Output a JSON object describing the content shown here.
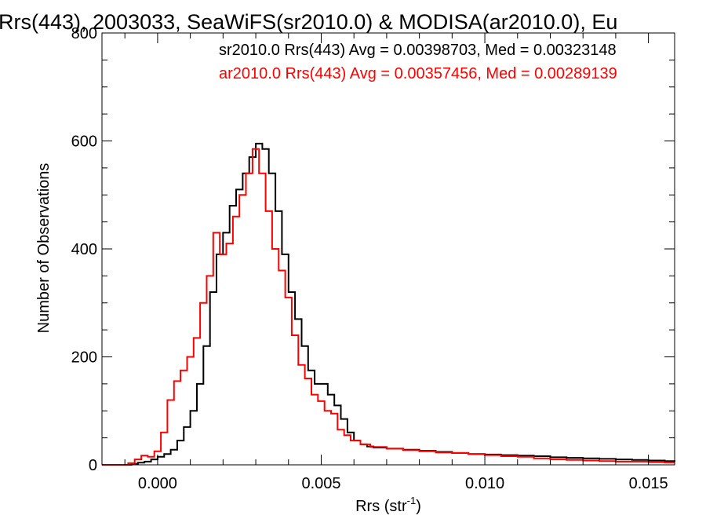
{
  "chart_data": {
    "type": "histogram",
    "title": "Rrs(443), 2003033, SeaWiFS(sr2010.0) & MODISA(ar2010.0), Eu",
    "xlabel": "Rrs (str",
    "xlabel_sup": "-1",
    "xlabel_suffix": ")",
    "ylabel": "Number of Observations",
    "xlim": [
      -0.0017,
      0.0158
    ],
    "ylim": [
      0,
      800
    ],
    "xticks": [
      0.0,
      0.005,
      0.01,
      0.015
    ],
    "xtick_labels": [
      "0.000",
      "0.005",
      "0.010",
      "0.015"
    ],
    "yticks": [
      0,
      200,
      400,
      600,
      800
    ],
    "ytick_labels": [
      "0",
      "200",
      "400",
      "600",
      "800"
    ],
    "grid": false,
    "legend_position": "top-right",
    "series": [
      {
        "legend": "sr2010.0 Rrs(443) Avg = 0.00398703, Med = 0.00323148",
        "color": "#000000",
        "points": [
          [
            -0.0017,
            0
          ],
          [
            -0.001,
            0
          ],
          [
            -0.0008,
            2
          ],
          [
            -0.0006,
            4
          ],
          [
            -0.0004,
            6
          ],
          [
            -0.0002,
            10
          ],
          [
            0.0,
            15
          ],
          [
            0.0002,
            20
          ],
          [
            0.0004,
            28
          ],
          [
            0.0006,
            45
          ],
          [
            0.0008,
            70
          ],
          [
            0.001,
            100
          ],
          [
            0.0012,
            150
          ],
          [
            0.0014,
            220
          ],
          [
            0.0016,
            320
          ],
          [
            0.0018,
            390
          ],
          [
            0.002,
            430
          ],
          [
            0.0022,
            480
          ],
          [
            0.0024,
            510
          ],
          [
            0.0026,
            540
          ],
          [
            0.0028,
            570
          ],
          [
            0.003,
            595
          ],
          [
            0.0032,
            585
          ],
          [
            0.0034,
            540
          ],
          [
            0.0036,
            470
          ],
          [
            0.0038,
            390
          ],
          [
            0.004,
            320
          ],
          [
            0.0042,
            270
          ],
          [
            0.0044,
            220
          ],
          [
            0.0046,
            175
          ],
          [
            0.0048,
            150
          ],
          [
            0.005,
            150
          ],
          [
            0.0052,
            130
          ],
          [
            0.0054,
            110
          ],
          [
            0.0056,
            85
          ],
          [
            0.0058,
            60
          ],
          [
            0.006,
            45
          ],
          [
            0.0062,
            38
          ],
          [
            0.0064,
            34
          ],
          [
            0.0066,
            32
          ],
          [
            0.007,
            30
          ],
          [
            0.0075,
            28
          ],
          [
            0.008,
            26
          ],
          [
            0.0085,
            24
          ],
          [
            0.009,
            22
          ],
          [
            0.0095,
            20
          ],
          [
            0.01,
            19
          ],
          [
            0.0105,
            18
          ],
          [
            0.011,
            17
          ],
          [
            0.0115,
            16
          ],
          [
            0.012,
            14
          ],
          [
            0.0125,
            13
          ],
          [
            0.013,
            12
          ],
          [
            0.0135,
            11
          ],
          [
            0.014,
            10
          ],
          [
            0.0145,
            9
          ],
          [
            0.015,
            8
          ],
          [
            0.0155,
            7
          ],
          [
            0.0158,
            6
          ]
        ]
      },
      {
        "legend": "ar2010.0 Rrs(443) Avg = 0.00357456, Med = 0.00289139",
        "color": "#ff0000",
        "points": [
          [
            -0.0017,
            0
          ],
          [
            -0.0011,
            0
          ],
          [
            -0.0009,
            3
          ],
          [
            -0.0007,
            10
          ],
          [
            -0.0005,
            17
          ],
          [
            -0.0003,
            15
          ],
          [
            -0.0001,
            25
          ],
          [
            0.0001,
            60
          ],
          [
            0.0003,
            120
          ],
          [
            0.0005,
            155
          ],
          [
            0.0007,
            175
          ],
          [
            0.0009,
            200
          ],
          [
            0.0011,
            235
          ],
          [
            0.0013,
            300
          ],
          [
            0.0015,
            350
          ],
          [
            0.0017,
            430
          ],
          [
            0.0019,
            390
          ],
          [
            0.0021,
            410
          ],
          [
            0.0023,
            460
          ],
          [
            0.0025,
            500
          ],
          [
            0.0027,
            540
          ],
          [
            0.0029,
            585
          ],
          [
            0.0031,
            540
          ],
          [
            0.0033,
            470
          ],
          [
            0.0035,
            400
          ],
          [
            0.0037,
            360
          ],
          [
            0.0039,
            310
          ],
          [
            0.0041,
            240
          ],
          [
            0.0043,
            185
          ],
          [
            0.0045,
            160
          ],
          [
            0.0047,
            130
          ],
          [
            0.0049,
            118
          ],
          [
            0.0051,
            100
          ],
          [
            0.0053,
            95
          ],
          [
            0.0055,
            65
          ],
          [
            0.0057,
            55
          ],
          [
            0.0059,
            45
          ],
          [
            0.0062,
            38
          ],
          [
            0.0065,
            33
          ],
          [
            0.007,
            30
          ],
          [
            0.0075,
            27
          ],
          [
            0.008,
            25
          ],
          [
            0.0085,
            23
          ],
          [
            0.009,
            22
          ],
          [
            0.0095,
            20
          ],
          [
            0.01,
            18
          ],
          [
            0.0105,
            16
          ],
          [
            0.011,
            15
          ],
          [
            0.0115,
            12
          ],
          [
            0.012,
            10
          ],
          [
            0.0125,
            9
          ],
          [
            0.013,
            8
          ],
          [
            0.0135,
            7
          ],
          [
            0.014,
            6
          ],
          [
            0.0145,
            6
          ],
          [
            0.015,
            5
          ],
          [
            0.0155,
            4
          ],
          [
            0.0158,
            4
          ]
        ]
      }
    ]
  }
}
